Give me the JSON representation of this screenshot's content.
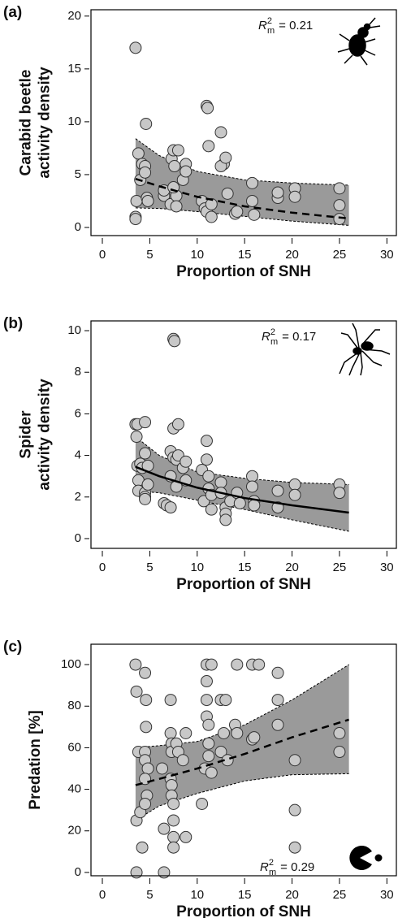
{
  "chart_data": [
    {
      "type": "scatter",
      "panel": "(a)",
      "ylabel": [
        "Carabid beetle",
        "activity density"
      ],
      "xlabel": "Proportion of SNH",
      "annotation": {
        "symbol": "R",
        "sup": "2",
        "sub": "m",
        "text": "= 0.21"
      },
      "xlim": [
        -1.2,
        31
      ],
      "xticks": [
        0,
        5,
        10,
        15,
        20,
        25,
        30
      ],
      "ylim": [
        -0.77,
        20.6
      ],
      "yticks": [
        0,
        5,
        10,
        15,
        20
      ],
      "color": "#c8c8c8",
      "band_color": "#9a9a9a",
      "x": [
        3.5,
        3.5,
        3.5,
        3.6,
        3.8,
        4,
        4.2,
        4.5,
        4.6,
        4.7,
        4.8,
        4.5,
        6.5,
        6.5,
        7.2,
        7.3,
        7.5,
        7.6,
        7.8,
        7.8,
        8,
        8.5,
        8.8,
        8.8,
        7.5,
        10.5,
        10.8,
        11,
        11,
        11.1,
        11.2,
        11.5,
        11.5,
        12.5,
        12.8,
        12.5,
        13,
        13.2,
        14,
        14.2,
        15.8,
        15.8,
        16,
        18.5,
        18.5,
        20.3,
        20.3,
        25,
        25,
        25
      ],
      "values": [
        17,
        1,
        0.8,
        2.5,
        7,
        4.5,
        6,
        5.8,
        9.8,
        2.8,
        2.5,
        5.2,
        3,
        3.5,
        2.2,
        6.5,
        7.3,
        5.8,
        3,
        2,
        7.3,
        4.5,
        6,
        5.3,
        3.8,
        2.5,
        1.8,
        1.5,
        11.5,
        11.3,
        7.7,
        1,
        2.2,
        9,
        6,
        5.8,
        6.6,
        3.2,
        1.3,
        1.5,
        4.2,
        2.5,
        1.2,
        2.8,
        3.3,
        3.7,
        2.9,
        3.7,
        2.1,
        0.8
      ],
      "fit": {
        "style": "dashed",
        "x": [
          3.5,
          6,
          10,
          15,
          20,
          26
        ],
        "values": [
          4.6,
          3.9,
          2.9,
          2.0,
          1.4,
          0.85
        ],
        "upper": [
          8.4,
          6.8,
          5.3,
          4.5,
          4.2,
          4.0
        ],
        "lower": [
          1.85,
          1.8,
          1.5,
          1.05,
          0.6,
          0.2
        ]
      }
    },
    {
      "type": "scatter",
      "panel": "(b)",
      "ylabel": [
        "Spider",
        "activity density"
      ],
      "xlabel": "Proportion of SNH",
      "annotation": {
        "symbol": "R",
        "sup": "2",
        "sub": "m",
        "text": "= 0.17"
      },
      "xlim": [
        -1.2,
        31
      ],
      "xticks": [
        0,
        5,
        10,
        15,
        20,
        25,
        30
      ],
      "ylim": [
        -0.47,
        10.47
      ],
      "yticks": [
        0,
        2,
        4,
        6,
        8,
        10
      ],
      "color": "#c8c8c8",
      "band_color": "#9a9a9a",
      "x": [
        3.5,
        3.7,
        3.6,
        3.7,
        3.8,
        3.8,
        4,
        4.2,
        4.5,
        4.5,
        4.5,
        4.5,
        4.5,
        4.8,
        4.8,
        6.5,
        6.8,
        7.2,
        7.2,
        7.2,
        7.5,
        7.5,
        7.6,
        7.5,
        7.8,
        7.8,
        8,
        8,
        8.5,
        8.8,
        8.8,
        10.5,
        10.7,
        11,
        11,
        11.2,
        11.2,
        11.5,
        11.5,
        12.5,
        12.5,
        13,
        13,
        13,
        13.5,
        14.2,
        14.5,
        15.8,
        15.8,
        16,
        16,
        18.5,
        18.5,
        20.3,
        20.3,
        25,
        25
      ],
      "values": [
        5.5,
        5.5,
        4.9,
        3.5,
        2.8,
        2.3,
        3.6,
        3.4,
        5.6,
        4.1,
        2.2,
        2.0,
        1.9,
        3.5,
        2.6,
        1.7,
        1.6,
        1.5,
        3.0,
        4.2,
        5.3,
        9.6,
        9.5,
        3.9,
        3.8,
        2.5,
        5.5,
        4.0,
        3.4,
        3.7,
        2.8,
        3.3,
        1.8,
        4.7,
        3.8,
        3.0,
        2.4,
        2.1,
        1.4,
        2.7,
        2.2,
        1.5,
        1.2,
        0.9,
        1.8,
        2.2,
        1.7,
        3.0,
        2.5,
        1.8,
        1.6,
        2.3,
        1.5,
        2.6,
        2.1,
        2.6,
        2.2
      ],
      "fit": {
        "style": "solid",
        "x": [
          3.5,
          6,
          10,
          15,
          20,
          26
        ],
        "values": [
          3.45,
          3.0,
          2.45,
          1.95,
          1.6,
          1.25
        ],
        "upper": [
          4.9,
          4.0,
          3.2,
          2.9,
          2.7,
          2.6
        ],
        "lower": [
          2.3,
          2.2,
          1.85,
          1.4,
          0.9,
          0.35
        ]
      }
    },
    {
      "type": "scatter",
      "panel": "(c)",
      "ylabel": [
        "Predation [%]"
      ],
      "xlabel": "Proportion of SNH",
      "annotation": {
        "symbol": "R",
        "sup": "2",
        "sub": "m",
        "text": "= 0.29"
      },
      "xlim": [
        -1.2,
        31
      ],
      "xticks": [
        0,
        5,
        10,
        15,
        20,
        25,
        30
      ],
      "ylim": [
        -1.6,
        109.8
      ],
      "yticks": [
        0,
        20,
        40,
        60,
        80,
        100
      ],
      "color": "#c8c8c8",
      "band_color": "#9a9a9a",
      "x": [
        3.5,
        3.6,
        3.6,
        3.6,
        3.8,
        4,
        4.2,
        4.5,
        4.6,
        4.6,
        4.5,
        4.5,
        4.8,
        4.5,
        4.7,
        4.5,
        6.3,
        6.5,
        6.5,
        7.2,
        7.2,
        7.3,
        7.3,
        7.2,
        7.3,
        7.3,
        7.5,
        7.5,
        7.5,
        7.5,
        7.8,
        8,
        8.5,
        8.8,
        8.8,
        10.5,
        10.8,
        11,
        11,
        11,
        11,
        11.2,
        11.2,
        11.2,
        11.5,
        11.5,
        12.5,
        12.8,
        12.5,
        13,
        13.2,
        14,
        14.2,
        14.2,
        15.8,
        15.8,
        16,
        16.5,
        18.5,
        18.5,
        18.5,
        20.3,
        20.3,
        20.3,
        25,
        25
      ],
      "values": [
        100,
        87,
        25,
        0,
        58,
        29,
        12,
        96,
        83,
        70,
        58,
        54,
        50,
        45,
        37,
        33,
        50,
        21,
        0,
        83,
        67,
        62,
        58,
        45,
        42,
        37,
        33,
        25,
        17,
        12,
        62,
        58,
        54,
        67,
        17,
        33,
        50,
        100,
        92,
        83,
        75,
        71,
        62,
        56,
        48,
        100,
        83,
        67,
        58,
        83,
        54,
        71,
        100,
        67,
        100,
        64,
        65,
        100,
        96,
        83,
        71,
        54,
        30,
        12,
        67,
        58
      ],
      "fit": {
        "style": "dashed",
        "x": [
          3.5,
          6,
          10,
          15,
          20,
          26
        ],
        "values": [
          42,
          45,
          50,
          57,
          65,
          73.5
        ],
        "upper": [
          60,
          61,
          63,
          71,
          83,
          100
        ],
        "lower": [
          25,
          32,
          38,
          44,
          47,
          47.5
        ]
      }
    }
  ]
}
